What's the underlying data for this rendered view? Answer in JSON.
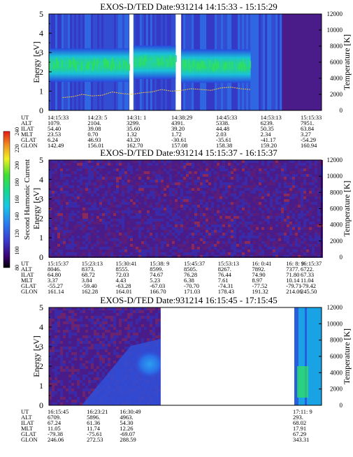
{
  "colorbar": {
    "label": "Second Harmonic Current",
    "ticks": [
      "80",
      "100",
      "120",
      "140",
      "160",
      "180",
      "200",
      "220",
      "240"
    ]
  },
  "chart_data": [
    {
      "type": "heatmap",
      "title": "EXOS-D/TED   Date:931214   14:15:33 - 15:15:29",
      "ylabel": "Energy [eV]",
      "y2label": "Temperature [K]",
      "ylim": [
        0,
        5
      ],
      "y2lim": [
        0,
        12000
      ],
      "yticks": [
        "0",
        "1",
        "2",
        "3",
        "4",
        "5"
      ],
      "y2ticks": [
        "0",
        "2000",
        "4000",
        "6000",
        "8000",
        "10000",
        "12000"
      ],
      "data_gaps": [
        [
          0.295,
          0.31
        ],
        [
          0.465,
          0.485
        ],
        [
          0.855,
          1.0
        ]
      ],
      "bands": [
        {
          "x_range": [
            0.0,
            0.295
          ],
          "energy_center": 2.35,
          "level": "high"
        },
        {
          "x_range": [
            0.31,
            0.465
          ],
          "energy_center": 2.5,
          "level": "high"
        },
        {
          "x_range": [
            0.485,
            0.74
          ],
          "energy_center": 2.3,
          "level": "high"
        }
      ],
      "temperature_trace_k": [
        1600,
        1700,
        2000,
        1800,
        1900,
        2300,
        2100,
        2000,
        2200,
        2300,
        2600,
        2400,
        2500,
        2700,
        2600,
        2500,
        2800,
        2900,
        2700,
        2600
      ],
      "ephemeris": {
        "rows": [
          "UT",
          "ALT",
          "ILAT",
          "MLT",
          "GLAT",
          "GLON"
        ],
        "columns": [
          [
            "14:15:33",
            "1079.",
            "54.40",
            "23.53",
            "6.24",
            "142.49"
          ],
          [
            "14:23: 5",
            "2104.",
            "39.08",
            "0.70",
            "46.93",
            "156.01"
          ],
          [
            "14:31: 1",
            "3299.",
            "35.60",
            "1.32",
            "43.20",
            "162.70"
          ],
          [
            "14:38:29",
            "4391.",
            "39.20",
            "1.72",
            "-30.61",
            "157.08"
          ],
          [
            "14:45:33",
            "5338.",
            "44.48",
            "2.03",
            "-35.61",
            "158.38"
          ],
          [
            "14:53:13",
            "6239.",
            "50.35",
            "2.34",
            "-41.17",
            "159.20"
          ],
          [
            "15:15:33",
            "7951.",
            "63.84",
            "3.27",
            "-54.29",
            "160.94"
          ]
        ]
      }
    },
    {
      "type": "heatmap",
      "title": "EXOS-D/TED   Date:931214   15:15:37 - 16:15:37",
      "ylabel": "Energy [eV]",
      "y2label": "Temperature [K]",
      "ylim": [
        0,
        5
      ],
      "y2lim": [
        0,
        12000
      ],
      "yticks": [
        "0",
        "1",
        "2",
        "3",
        "4",
        "5"
      ],
      "y2ticks": [
        "0",
        "2000",
        "4000",
        "6000",
        "8000",
        "10000",
        "12000"
      ],
      "background_level": "noise",
      "ephemeris": {
        "rows": [
          "UT",
          "ALT",
          "ILAT",
          "MLT",
          "GLAT",
          "GLON"
        ],
        "columns": [
          [
            "15:15:37",
            "8046.",
            "64.80",
            "3.37",
            "-55.27",
            "161.14"
          ],
          [
            "15:23:13",
            "8373.",
            "68.72",
            "3.84",
            "-59.40",
            "162.28"
          ],
          [
            "15:30:41",
            "8555.",
            "72.03",
            "4.43",
            "-63.28",
            "164.01"
          ],
          [
            "15:38: 9",
            "8599.",
            "74.67",
            "5.23",
            "-67.03",
            "166.70"
          ],
          [
            "15:45:37",
            "8505.",
            "76.28",
            "6.38",
            "-70.70",
            "171.03"
          ],
          [
            "15:53:13",
            "8267.",
            "76.44",
            "7.61",
            "-74.31",
            "178.43"
          ],
          [
            "16: 0:41",
            "7892.",
            "74.90",
            "8.97",
            "-77.52",
            "191.32"
          ],
          [
            "16: 8: 9",
            "7377.",
            "71.80",
            "10.14",
            "-79.71",
            "214.06"
          ],
          [
            "16:15:37",
            "6722.",
            "67.33",
            "11.04",
            "-79.42",
            "245.50"
          ]
        ]
      }
    },
    {
      "type": "heatmap",
      "title": "EXOS-D/TED   Date:931214   16:15:45 - 17:15:45",
      "ylabel": "Energy [eV]",
      "y2label": "Temperature [K]",
      "ylim": [
        0,
        5
      ],
      "y2lim": [
        0,
        12000
      ],
      "yticks": [
        "0",
        "1",
        "2",
        "3",
        "4",
        "5"
      ],
      "y2ticks": [
        "0",
        "2000",
        "4000",
        "6000",
        "8000",
        "10000",
        "12000"
      ],
      "data_gaps": [
        [
          0.41,
          0.9
        ]
      ],
      "ephemeris": {
        "rows": [
          "UT",
          "ALT",
          "ILAT",
          "MLT",
          "GLAT",
          "GLON"
        ],
        "columns": [
          [
            "16:15:45",
            "6709.",
            "67.24",
            "11.05",
            "-79.38",
            "246.06"
          ],
          [
            "16:23:21",
            "5896.",
            "61.36",
            "11.74",
            "-75.61",
            "272.53"
          ],
          [
            "16:30:49",
            "4963.",
            "54.30",
            "12.26",
            "-69.07",
            "288.59"
          ],
          [
            "17:11: 9",
            "293.",
            "68.02",
            "17.91",
            "67.29",
            "343.31"
          ]
        ]
      }
    }
  ]
}
